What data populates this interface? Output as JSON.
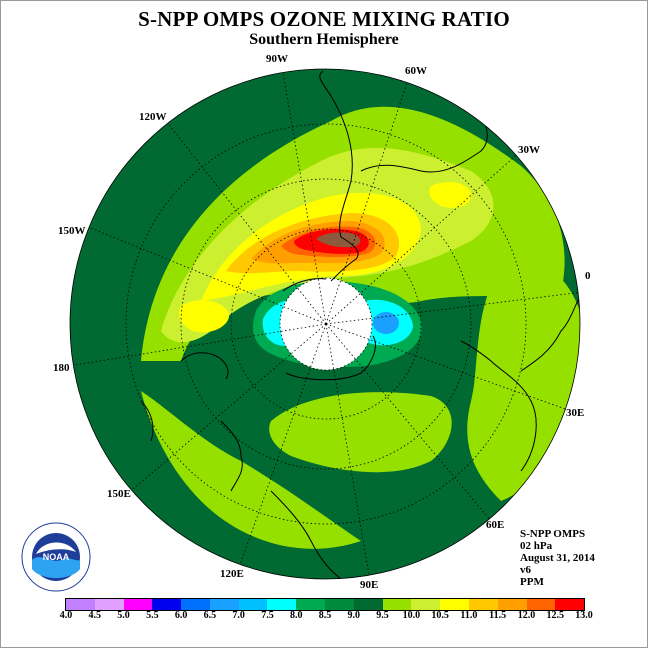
{
  "header": {
    "title": "S-NPP OMPS OZONE MIXING RATIO",
    "subtitle": "Southern Hemisphere"
  },
  "longitude_labels": [
    "90W",
    "60W",
    "30W",
    "0",
    "30E",
    "60E",
    "90E",
    "120E",
    "150E",
    "180",
    "150W",
    "120W"
  ],
  "info_block": {
    "instrument": "S-NPP OMPS",
    "level": "02 hPa",
    "date": "August 31, 2014",
    "version": "v6",
    "units": "PPM"
  },
  "logo": {
    "text": "NOAA",
    "ring_text": "NATIONAL OCEANIC AND ATMOSPHERIC ADMINISTRATION · U.S. DEPARTMENT OF COMMERCE"
  },
  "colorbar": {
    "ticks": [
      "4.0",
      "4.5",
      "5.0",
      "5.5",
      "6.0",
      "6.5",
      "7.0",
      "7.5",
      "8.0",
      "8.5",
      "9.0",
      "9.5",
      "10.0",
      "10.5",
      "11.0",
      "11.5",
      "12.0",
      "12.5",
      "13.0"
    ],
    "colors": [
      "#c080ff",
      "#e0a0ff",
      "#ff00ff",
      "#0000ee",
      "#0070ff",
      "#1aa0ff",
      "#00c0ff",
      "#00ffff",
      "#00aa50",
      "#008a3c",
      "#006a32",
      "#96e000",
      "#ccf030",
      "#ffff00",
      "#ffc800",
      "#ffa000",
      "#ff6400",
      "#ff0000",
      "#8c5a3c"
    ]
  },
  "map_colors": {
    "ocean_bg": "#006a32",
    "pole_hole": "#ffffff"
  }
}
